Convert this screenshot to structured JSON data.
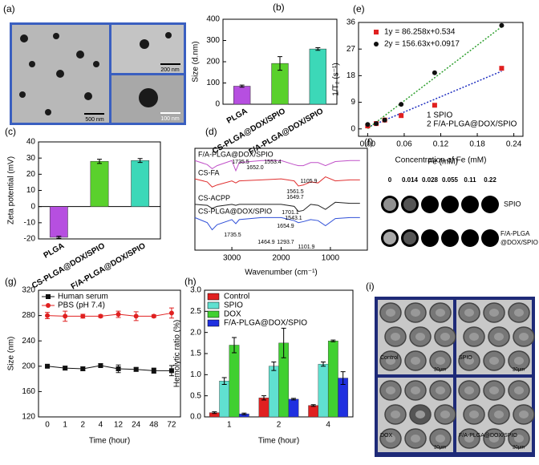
{
  "panel_labels": [
    "(a)",
    "(b)",
    "(c)",
    "(d)",
    "(e)",
    "(f)",
    "(g)",
    "(h)",
    "(i)"
  ],
  "tem_image": {
    "scale_labels": [
      "500 nm",
      "200 nm",
      "100 nm"
    ]
  },
  "mri_table": {
    "title": "Fe (mM)",
    "concentrations": [
      "0",
      "0.014",
      "0.028",
      "0.055",
      "0.11",
      "0.22"
    ],
    "rows": [
      "SPIO",
      "F/A-PLGA",
      "@DOX/SPIO"
    ]
  },
  "microscopy": {
    "labels": [
      "Control",
      "SPIO",
      "DOX",
      "F/A-PLGA@DOX/SPIO"
    ],
    "scale": "20μm"
  },
  "chart_data": [
    {
      "type": "bar",
      "ylabel": "Size (d.nm)",
      "categories": [
        "PLGA",
        "CS-PLGA@DOX/SPIO",
        "F/A-PLGA@DOX/SPIO"
      ],
      "values": [
        85,
        192,
        260
      ],
      "errors": [
        5,
        32,
        6
      ],
      "colors": [
        "#b64fe0",
        "#5ad12c",
        "#3cd8b8"
      ],
      "ylim": [
        0,
        400
      ],
      "yticks": [
        0,
        100,
        200,
        300,
        400
      ]
    },
    {
      "type": "bar",
      "ylabel": "Zeta potential (mV)",
      "categories": [
        "PLGA",
        "CS-PLGA@DOX/SPIO",
        "F/A-PLGA@DOX/SPIO"
      ],
      "values": [
        -19,
        28,
        28.5
      ],
      "errors": [
        0.6,
        1.3,
        1.2
      ],
      "colors": [
        "#b64fe0",
        "#5ad12c",
        "#3cd8b8"
      ],
      "ylim": [
        -20,
        40
      ],
      "yticks": [
        -20,
        -10,
        0,
        10,
        20,
        30,
        40
      ]
    },
    {
      "type": "line",
      "xlabel": "Wavenumber (cm⁻¹)",
      "x": [
        3750,
        3500,
        3400,
        3300,
        3000,
        2920,
        2850,
        2400,
        2000,
        1735,
        1650,
        1550,
        1400,
        1250,
        1100,
        900,
        600,
        400
      ],
      "xlim": [
        3750,
        250
      ],
      "xticks": [
        3000,
        2000,
        1000
      ],
      "ylim": [
        0,
        100
      ],
      "series": [
        {
          "name": "F/A-PLGA@DOX/SPIO",
          "color": "#c050c8",
          "values": [
            88,
            84,
            80,
            83,
            88,
            78,
            86,
            88,
            88,
            84,
            83,
            83,
            86,
            86,
            83,
            87,
            88,
            88
          ]
        },
        {
          "name": "CS-FA",
          "color": "#e03030",
          "values": [
            70,
            67,
            62,
            64,
            68,
            66,
            68,
            69,
            70,
            68,
            63,
            64,
            67,
            66,
            72,
            68,
            69,
            69
          ]
        },
        {
          "name": "CS-ACPP",
          "color": "#202020",
          "values": [
            45,
            44,
            41,
            43,
            45,
            44,
            45,
            45,
            45,
            43,
            38,
            39,
            45,
            44,
            40,
            47,
            46,
            46
          ]
        },
        {
          "name": "CS-PLGA@DOX/SPIO",
          "color": "#3050d8",
          "values": [
            32,
            27,
            20,
            25,
            30,
            26,
            30,
            32,
            32,
            29,
            27,
            28,
            30,
            29,
            24,
            31,
            32,
            32
          ]
        }
      ],
      "annotations": [
        "1735.5",
        "1652.0",
        "1553.4",
        "1105.9",
        "1561.5",
        "1649.7",
        "1701.1",
        "1543.1",
        "1654.9",
        "1735.5",
        "1464.9",
        "1293.7",
        "1101.9"
      ]
    },
    {
      "type": "scatter",
      "xlabel": "Concentration of Fe (mM)",
      "ylabel": "1/T₂ (s⁻¹)",
      "xlim": [
        -0.015,
        0.255
      ],
      "xticks": [
        {
          "value": 0,
          "label": "0.00"
        },
        0.06,
        0.12,
        0.18,
        0.24
      ],
      "ylim": [
        -2.5,
        36
      ],
      "yticks": [
        0,
        9,
        18,
        27,
        36
      ],
      "series": [
        {
          "name": "1y = 86.258x+0.534",
          "color": "#e02020",
          "marker": "square",
          "x": [
            0,
            0.014,
            0.028,
            0.055,
            0.11,
            0.22
          ],
          "values": [
            1.0,
            1.8,
            3.0,
            4.5,
            8.0,
            20.5
          ],
          "fit": {
            "slope": 86.258,
            "intercept": 0.534,
            "color": "#2030c0"
          }
        },
        {
          "name": "2y = 156.63x+0.0917",
          "color": "#101010",
          "marker": "circle",
          "x": [
            0,
            0.014,
            0.028,
            0.055,
            0.11,
            0.22
          ],
          "values": [
            1.5,
            1.8,
            3.0,
            8.3,
            19,
            35
          ],
          "fit": {
            "slope": 156.63,
            "intercept": 0.0917,
            "color": "#30a030"
          }
        }
      ],
      "annotations": [
        "1 SPIO",
        "2 F/A-PLGA@DOX/SPIO"
      ]
    },
    {
      "type": "line",
      "xlabel": "Time (hour)",
      "ylabel": "Size (nm)",
      "categories": [
        "0",
        "1",
        "2",
        "4",
        "12",
        "24",
        "48",
        "72"
      ],
      "ylim": [
        120,
        320
      ],
      "yticks": [
        120,
        160,
        200,
        240,
        280,
        320
      ],
      "series": [
        {
          "name": "Human serum",
          "color": "#101010",
          "marker": "square",
          "values": [
            200,
            197,
            196,
            201,
            196,
            195,
            193,
            193
          ],
          "errors": [
            2,
            3,
            3,
            3,
            6,
            3,
            4,
            8
          ]
        },
        {
          "name": "PBS (pH 7.4)",
          "color": "#e02020",
          "marker": "circle",
          "values": [
            280,
            279,
            279,
            279,
            282,
            279,
            279,
            284
          ],
          "errors": [
            5,
            8,
            3,
            2,
            5,
            7,
            2,
            8
          ]
        }
      ]
    },
    {
      "type": "bar",
      "xlabel": "Time (hour)",
      "ylabel": "Hemolytic ratio (%)",
      "categories": [
        "1",
        "2",
        "4"
      ],
      "ylim": [
        0,
        3
      ],
      "yticks": [
        {
          "value": 0,
          "label": "0.0"
        },
        0.5,
        {
          "value": 1,
          "label": "1.0"
        },
        1.5,
        {
          "value": 2,
          "label": "2.0"
        },
        2.5,
        {
          "value": 3,
          "label": "3.0"
        }
      ],
      "series": [
        {
          "name": "Control",
          "color": "#e02020",
          "values": [
            0.1,
            0.45,
            0.27
          ],
          "errors": [
            0.02,
            0.05,
            0.02
          ]
        },
        {
          "name": "SPIO",
          "color": "#60e0d0",
          "values": [
            0.85,
            1.2,
            1.25
          ],
          "errors": [
            0.08,
            0.1,
            0.05
          ]
        },
        {
          "name": "DOX",
          "color": "#40d030",
          "values": [
            1.7,
            1.75,
            1.8
          ],
          "errors": [
            0.18,
            0.35,
            0.02
          ]
        },
        {
          "name": "F/A-PLGA@DOX/SPIO",
          "color": "#2030e0",
          "values": [
            0.07,
            0.42,
            0.92
          ],
          "errors": [
            0.02,
            0.02,
            0.15
          ]
        }
      ]
    }
  ]
}
